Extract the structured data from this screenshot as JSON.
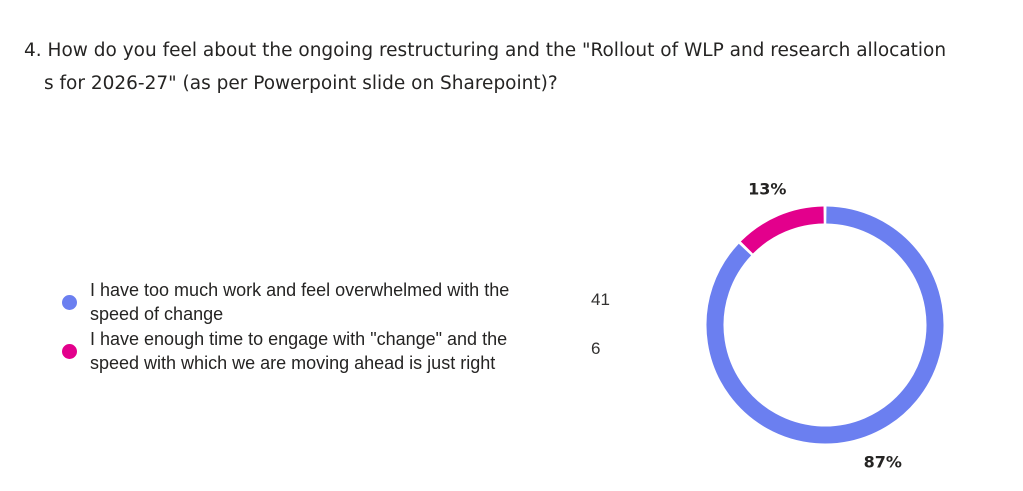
{
  "question": {
    "line1": "4. How do you feel about the ongoing restructuring and the \"Rollout of WLP and research allocation",
    "line2": "s for 2026-27\" (as per Powerpoint slide on Sharepoint)?"
  },
  "chart_data": {
    "type": "pie",
    "style": "donut",
    "title": "",
    "categories": [
      "I have too much work and feel overwhelmed with the speed of change",
      "I have enough time to engage with \"change\" and the speed with which we are moving ahead is just right"
    ],
    "values": [
      41,
      6
    ],
    "percent_labels": [
      "87%",
      "13%"
    ],
    "colors": [
      "#6b7ff0",
      "#e3008c"
    ],
    "legend_placement": "left"
  }
}
